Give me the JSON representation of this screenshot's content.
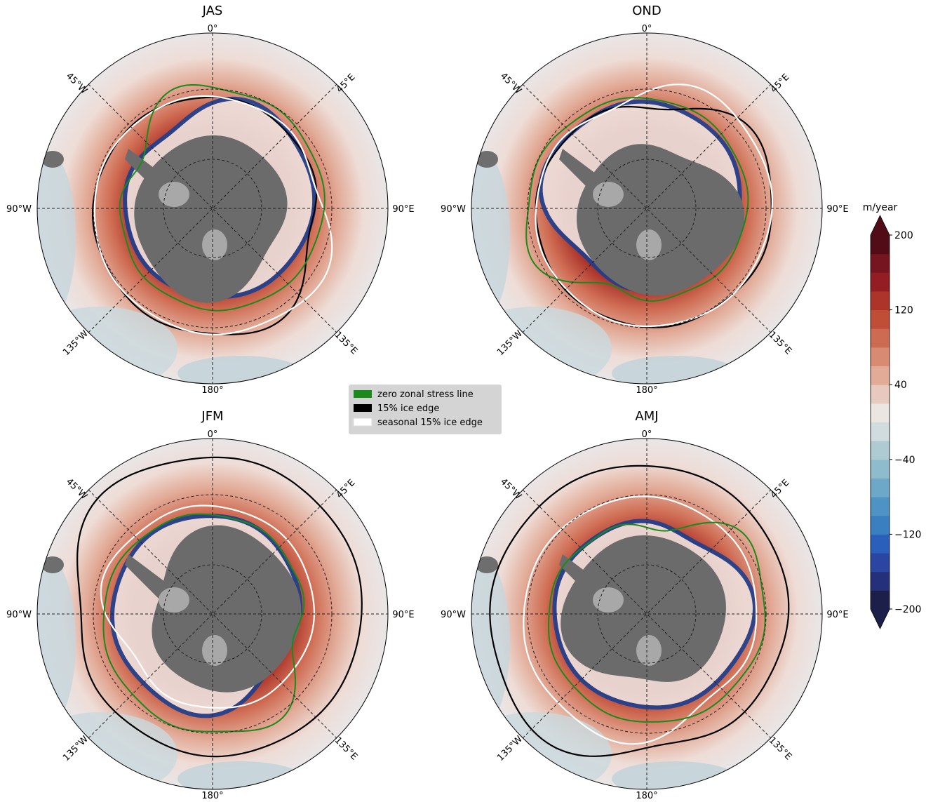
{
  "panels": [
    {
      "title": "JAS"
    },
    {
      "title": "OND"
    },
    {
      "title": "JFM"
    },
    {
      "title": "AMJ"
    }
  ],
  "longitude_labels": [
    "0°",
    "45°E",
    "90°E",
    "135°E",
    "180°",
    "135°W",
    "90°W",
    "45°W"
  ],
  "legend": [
    {
      "label": "zero zonal stress line",
      "color": "#1a8a1a"
    },
    {
      "label": "15% ice edge",
      "color": "#000000"
    },
    {
      "label": "seasonal 15% ice edge",
      "color": "#ffffff"
    }
  ],
  "colorbar": {
    "label": "m/year",
    "lim": [
      -200,
      200
    ],
    "ticks": [
      {
        "value": 200,
        "label": "200"
      },
      {
        "value": 120,
        "label": "120"
      },
      {
        "value": 40,
        "label": "40"
      },
      {
        "value": -40,
        "label": "−40"
      },
      {
        "value": -120,
        "label": "−120"
      },
      {
        "value": -200,
        "label": "−200"
      }
    ],
    "colors": [
      "#1b1f4a",
      "#25307a",
      "#2b45a3",
      "#2a60bb",
      "#3a7fc0",
      "#4f93c4",
      "#6ea8c8",
      "#8fbccc",
      "#aecbd2",
      "#d0dcde",
      "#ece6e3",
      "#e8c9bd",
      "#e2ab98",
      "#d98a73",
      "#cd6a52",
      "#c04e37",
      "#ad3428",
      "#931d23",
      "#761420",
      "#520c17"
    ]
  }
}
